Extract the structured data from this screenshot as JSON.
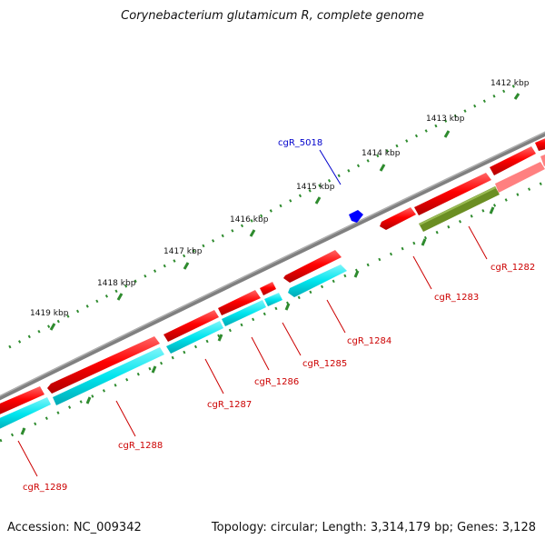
{
  "title": "Corynebacterium glutamicum R, complete genome",
  "footer": {
    "accession": "Accession: NC_009342",
    "summary": "Topology: circular; Length: 3,314,179 bp; Genes: 3,128"
  },
  "colors": {
    "forward_gene": "#ff0000",
    "reverse_gene": "#ff0000",
    "cds_track": "#00e5ee",
    "highlight_cds": "#6b8e23",
    "highlight_faded": "#ff8080",
    "backbone": "#808080",
    "ticks": "#2e8b2e",
    "marker": "#0000ff",
    "label_red": "#cc0000",
    "label_blue": "#0000cc"
  },
  "ruler_labels": [
    {
      "text": "1412 kbp"
    },
    {
      "text": "1413 kbp"
    },
    {
      "text": "1414 kbp"
    },
    {
      "text": "1415 kbp"
    },
    {
      "text": "1416 kbp"
    },
    {
      "text": "1417 kbp"
    },
    {
      "text": "1418 kbp"
    },
    {
      "text": "1419 kbp"
    }
  ],
  "genes": [
    {
      "name": "cgR_5018"
    },
    {
      "name": "cgR_1282"
    },
    {
      "name": "cgR_1283"
    },
    {
      "name": "cgR_1284"
    },
    {
      "name": "cgR_1285"
    },
    {
      "name": "cgR_1286"
    },
    {
      "name": "cgR_1287"
    },
    {
      "name": "cgR_1288"
    },
    {
      "name": "cgR_1289"
    }
  ]
}
